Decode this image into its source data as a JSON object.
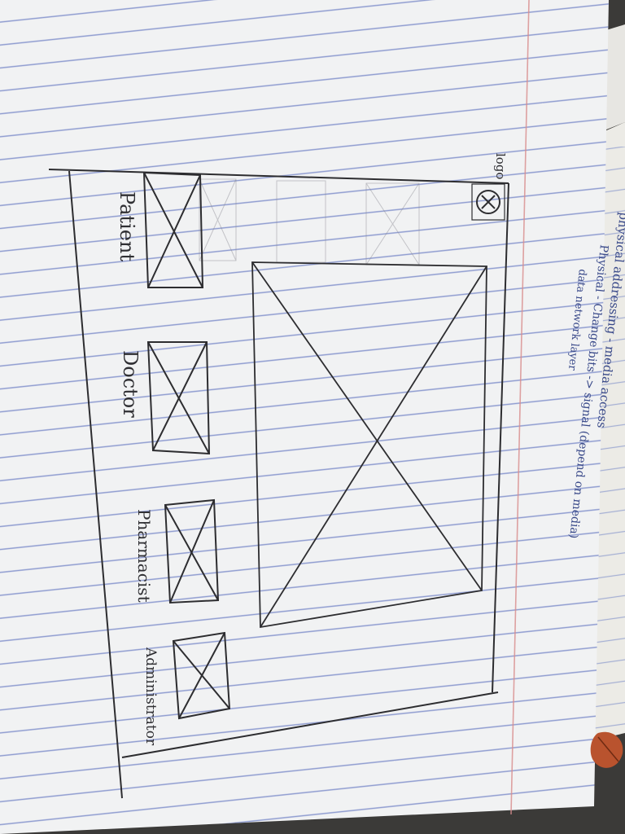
{
  "sketch": {
    "logo_label": "logo",
    "roles": [
      {
        "label": "Patient"
      },
      {
        "label": "Doctor"
      },
      {
        "label": "Pharmacist"
      },
      {
        "label": "Administrator"
      }
    ]
  },
  "back_page_notes": [
    "physical addressing - media access",
    "Physical - Change bits -> signal (depend on media)",
    "data network layer"
  ],
  "colors": {
    "paper": "#f2f3f4",
    "ruling": "#6d7fc4",
    "margin": "#d98c8c",
    "pencil": "#2d2d30",
    "floor": "#3b3a38"
  }
}
